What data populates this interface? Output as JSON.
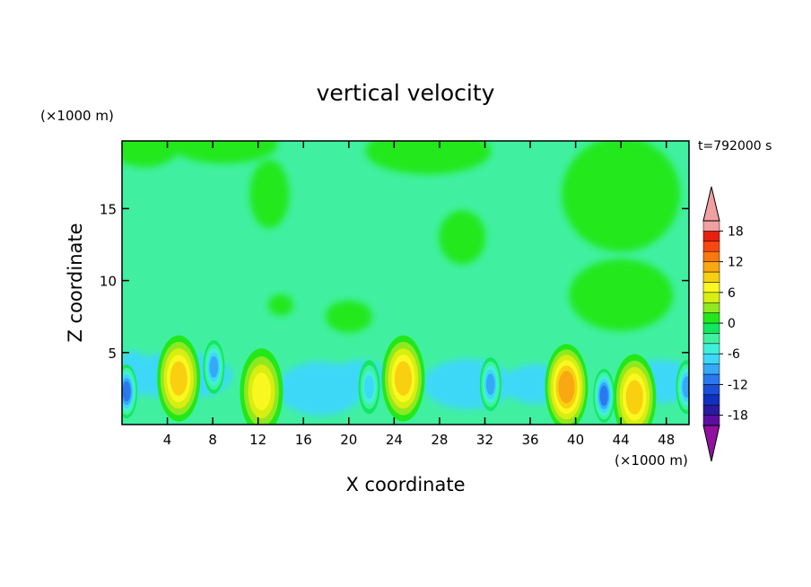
{
  "chart_data": {
    "type": "heatmap",
    "title": "vertical velocity",
    "xlabel": "X coordinate",
    "ylabel": "Z coordinate",
    "x_unit": "(×1000 m)",
    "z_unit": "(×1000 m)",
    "time_label": "t=792000 s",
    "xlim": [
      0,
      50
    ],
    "zlim": [
      0,
      19.7
    ],
    "x_ticks": [
      4,
      8,
      12,
      16,
      20,
      24,
      28,
      32,
      36,
      40,
      44,
      48
    ],
    "z_ticks": [
      5,
      10,
      15
    ],
    "colorbar": {
      "levels": [
        -20,
        -18,
        -16,
        -14,
        -12,
        -10,
        -8,
        -6,
        -4,
        -2,
        0,
        2,
        4,
        6,
        8,
        10,
        12,
        14,
        16,
        18,
        20
      ],
      "tick_labels": [
        "18",
        "12",
        "6",
        "0",
        "-6",
        "-12",
        "-18"
      ],
      "tick_values": [
        18,
        12,
        6,
        0,
        -6,
        -12,
        -18
      ],
      "colors_low_to_high": [
        "#5a0fa0",
        "#2a1aa0",
        "#1030c0",
        "#1a4fd8",
        "#2a78f0",
        "#35a8f8",
        "#3cd8f8",
        "#40f0d8",
        "#40f0a0",
        "#10e860",
        "#22e81a",
        "#90e820",
        "#d8ee10",
        "#f8f820",
        "#f8d010",
        "#f8a810",
        "#f87810",
        "#f84810",
        "#e82010",
        "#f0a0a0"
      ],
      "under_color": "#9010a0",
      "over_color": "#f0a0a0"
    },
    "features": [
      {
        "sign": "up",
        "x": 5,
        "z": 3.2,
        "peak": 9
      },
      {
        "sign": "up",
        "x": 12.3,
        "z": 2.3,
        "peak": 8
      },
      {
        "sign": "up",
        "x": 24.8,
        "z": 3.2,
        "peak": 9
      },
      {
        "sign": "up",
        "x": 39.2,
        "z": 2.6,
        "peak": 12
      },
      {
        "sign": "up",
        "x": 45.2,
        "z": 1.9,
        "peak": 9
      },
      {
        "sign": "down",
        "x": 0.4,
        "z": 2.3,
        "peak": -11
      },
      {
        "sign": "down",
        "x": 8.1,
        "z": 4,
        "peak": -9
      },
      {
        "sign": "down",
        "x": 21.8,
        "z": 2.6,
        "peak": -8
      },
      {
        "sign": "down",
        "x": 32.5,
        "z": 2.8,
        "peak": -10
      },
      {
        "sign": "down",
        "x": 42.5,
        "z": 2,
        "peak": -12
      },
      {
        "sign": "down",
        "x": 49.8,
        "z": 2.6,
        "peak": -10
      }
    ]
  }
}
